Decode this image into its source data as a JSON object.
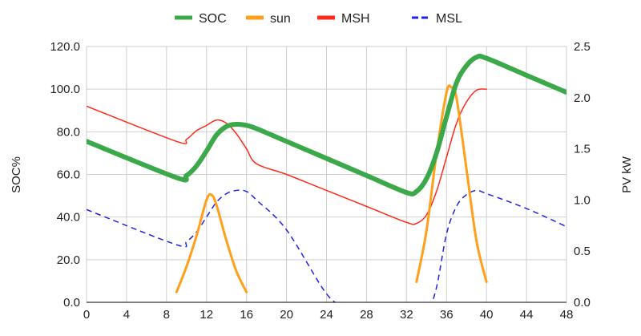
{
  "chart_data": {
    "type": "line",
    "xlabel": "",
    "ylabel": "SOC%",
    "y2label": "PV kW",
    "xlim": [
      0,
      48
    ],
    "ylim": [
      0,
      120
    ],
    "y2lim": [
      0,
      2.5
    ],
    "grid": true,
    "legend_position": "top-center",
    "x_ticks": [
      "0",
      "4",
      "8",
      "12",
      "16",
      "20",
      "24",
      "28",
      "32",
      "36",
      "40",
      "44",
      "48"
    ],
    "y_ticks": [
      "0.0",
      "20.0",
      "40.0",
      "60.0",
      "80.0",
      "100.0",
      "120.0"
    ],
    "y2_ticks": [
      "0.0",
      "0.5",
      "1.0",
      "1.5",
      "2.0",
      "2.5"
    ],
    "series": [
      {
        "name": "SOC",
        "axis": "left",
        "color": "#3ba849",
        "style": "solid",
        "x": [
          0,
          9,
          10,
          11,
          12,
          13,
          14,
          15,
          16,
          17,
          20,
          24,
          28,
          32,
          33,
          34,
          35,
          36,
          37,
          38,
          39,
          40,
          44,
          48
        ],
        "y": [
          75.5,
          58.5,
          59.5,
          64,
          71,
          78.5,
          82.5,
          83.5,
          83,
          81.5,
          75.5,
          67.5,
          59.5,
          51.5,
          52,
          58,
          70,
          87,
          103,
          111,
          115,
          114.5,
          106.5,
          98.5
        ]
      },
      {
        "name": "sun",
        "axis": "right",
        "color": "#ff9f1a",
        "style": "solid",
        "x": [
          9,
          10,
          11,
          12,
          12.5,
          13,
          14,
          15,
          16
        ],
        "y": [
          0.1,
          0.35,
          0.65,
          1.0,
          1.05,
          0.95,
          0.6,
          0.3,
          0.1
        ],
        "x2": [
          33,
          34,
          35,
          36,
          36.5,
          37,
          38,
          39,
          40
        ],
        "y2": [
          0.2,
          0.7,
          1.45,
          2.05,
          2.1,
          2.0,
          1.3,
          0.6,
          0.2
        ]
      },
      {
        "name": "MSH",
        "axis": "left",
        "color": "#ff2a1a",
        "style": "solid",
        "x": [
          0,
          9,
          10,
          11,
          12,
          13,
          14,
          15,
          16,
          17,
          20,
          24,
          28,
          32,
          33,
          34,
          35,
          36,
          37,
          38,
          39,
          40
        ],
        "y": [
          92,
          75.5,
          76.5,
          80.5,
          83,
          85.5,
          84,
          79,
          72,
          65,
          60,
          52.5,
          45,
          37.5,
          37,
          41,
          52,
          68,
          84,
          94,
          99.5,
          100
        ]
      },
      {
        "name": "MSL",
        "axis": "left",
        "color": "#2222ee",
        "style": "dashed",
        "x": [
          0,
          9,
          10,
          11,
          12,
          13,
          14,
          15,
          16,
          17,
          20,
          24,
          26,
          28,
          32,
          33,
          34,
          35,
          36,
          37,
          38,
          39,
          40,
          44,
          48
        ],
        "y": [
          43.5,
          27,
          28.5,
          33,
          40,
          47,
          51,
          52.5,
          52,
          48,
          34,
          4,
          -2,
          -6,
          -6,
          -6,
          -6,
          7,
          32,
          45,
          50.5,
          52.5,
          51,
          44,
          35.5
        ]
      }
    ]
  }
}
